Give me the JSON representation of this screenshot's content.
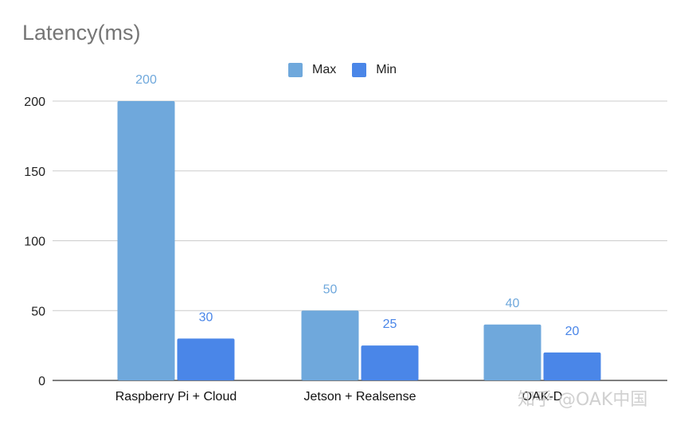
{
  "chart_data": {
    "type": "bar",
    "title": "Latency(ms)",
    "xlabel": "",
    "ylabel": "",
    "categories": [
      "Raspberry Pi + Cloud",
      "Jetson + Realsense",
      "OAK-D"
    ],
    "series": [
      {
        "name": "Max",
        "values": [
          200,
          50,
          40
        ],
        "color": "#6fa8dc"
      },
      {
        "name": "Min",
        "values": [
          30,
          25,
          20
        ],
        "color": "#4a86e8"
      }
    ],
    "ylim": [
      0,
      200
    ],
    "yticks": [
      "0",
      "50",
      "100",
      "150",
      "200"
    ],
    "grid": true,
    "legend_position": "top-center",
    "data_labels": true
  },
  "watermark": "知乎 @OAK中国"
}
